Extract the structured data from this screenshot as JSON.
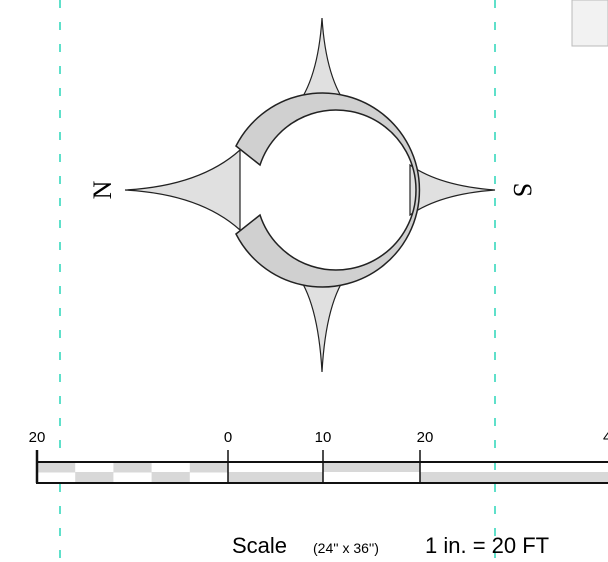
{
  "compass": {
    "north": "N",
    "south": "S"
  },
  "scale": {
    "labels": [
      "20",
      "0",
      "10",
      "20",
      "4"
    ],
    "title": "Scale",
    "size": "(24'' x 36'')",
    "ratio": "1 in. = 20 FT"
  }
}
